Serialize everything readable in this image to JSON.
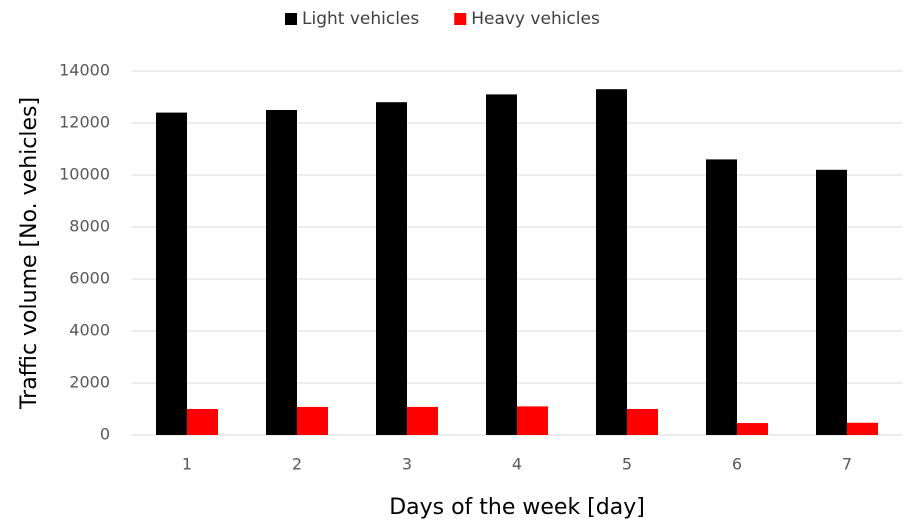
{
  "chart_data": {
    "type": "bar",
    "xlabel": "Days of the week [day]",
    "ylabel": "Traffic volume [No. vehicles]",
    "categories": [
      "1",
      "2",
      "3",
      "4",
      "5",
      "6",
      "7"
    ],
    "series": [
      {
        "name": "Light vehicles",
        "color": "#000000",
        "values": [
          12400,
          12500,
          12800,
          13100,
          13300,
          10600,
          10200
        ]
      },
      {
        "name": "Heavy vehicles",
        "color": "#ff0000",
        "values": [
          1000,
          1080,
          1080,
          1100,
          1000,
          460,
          470
        ]
      }
    ],
    "ylim": [
      0,
      14000
    ],
    "yticks": [
      0,
      2000,
      4000,
      6000,
      8000,
      10000,
      12000,
      14000
    ],
    "grid": true,
    "legend": "top"
  }
}
